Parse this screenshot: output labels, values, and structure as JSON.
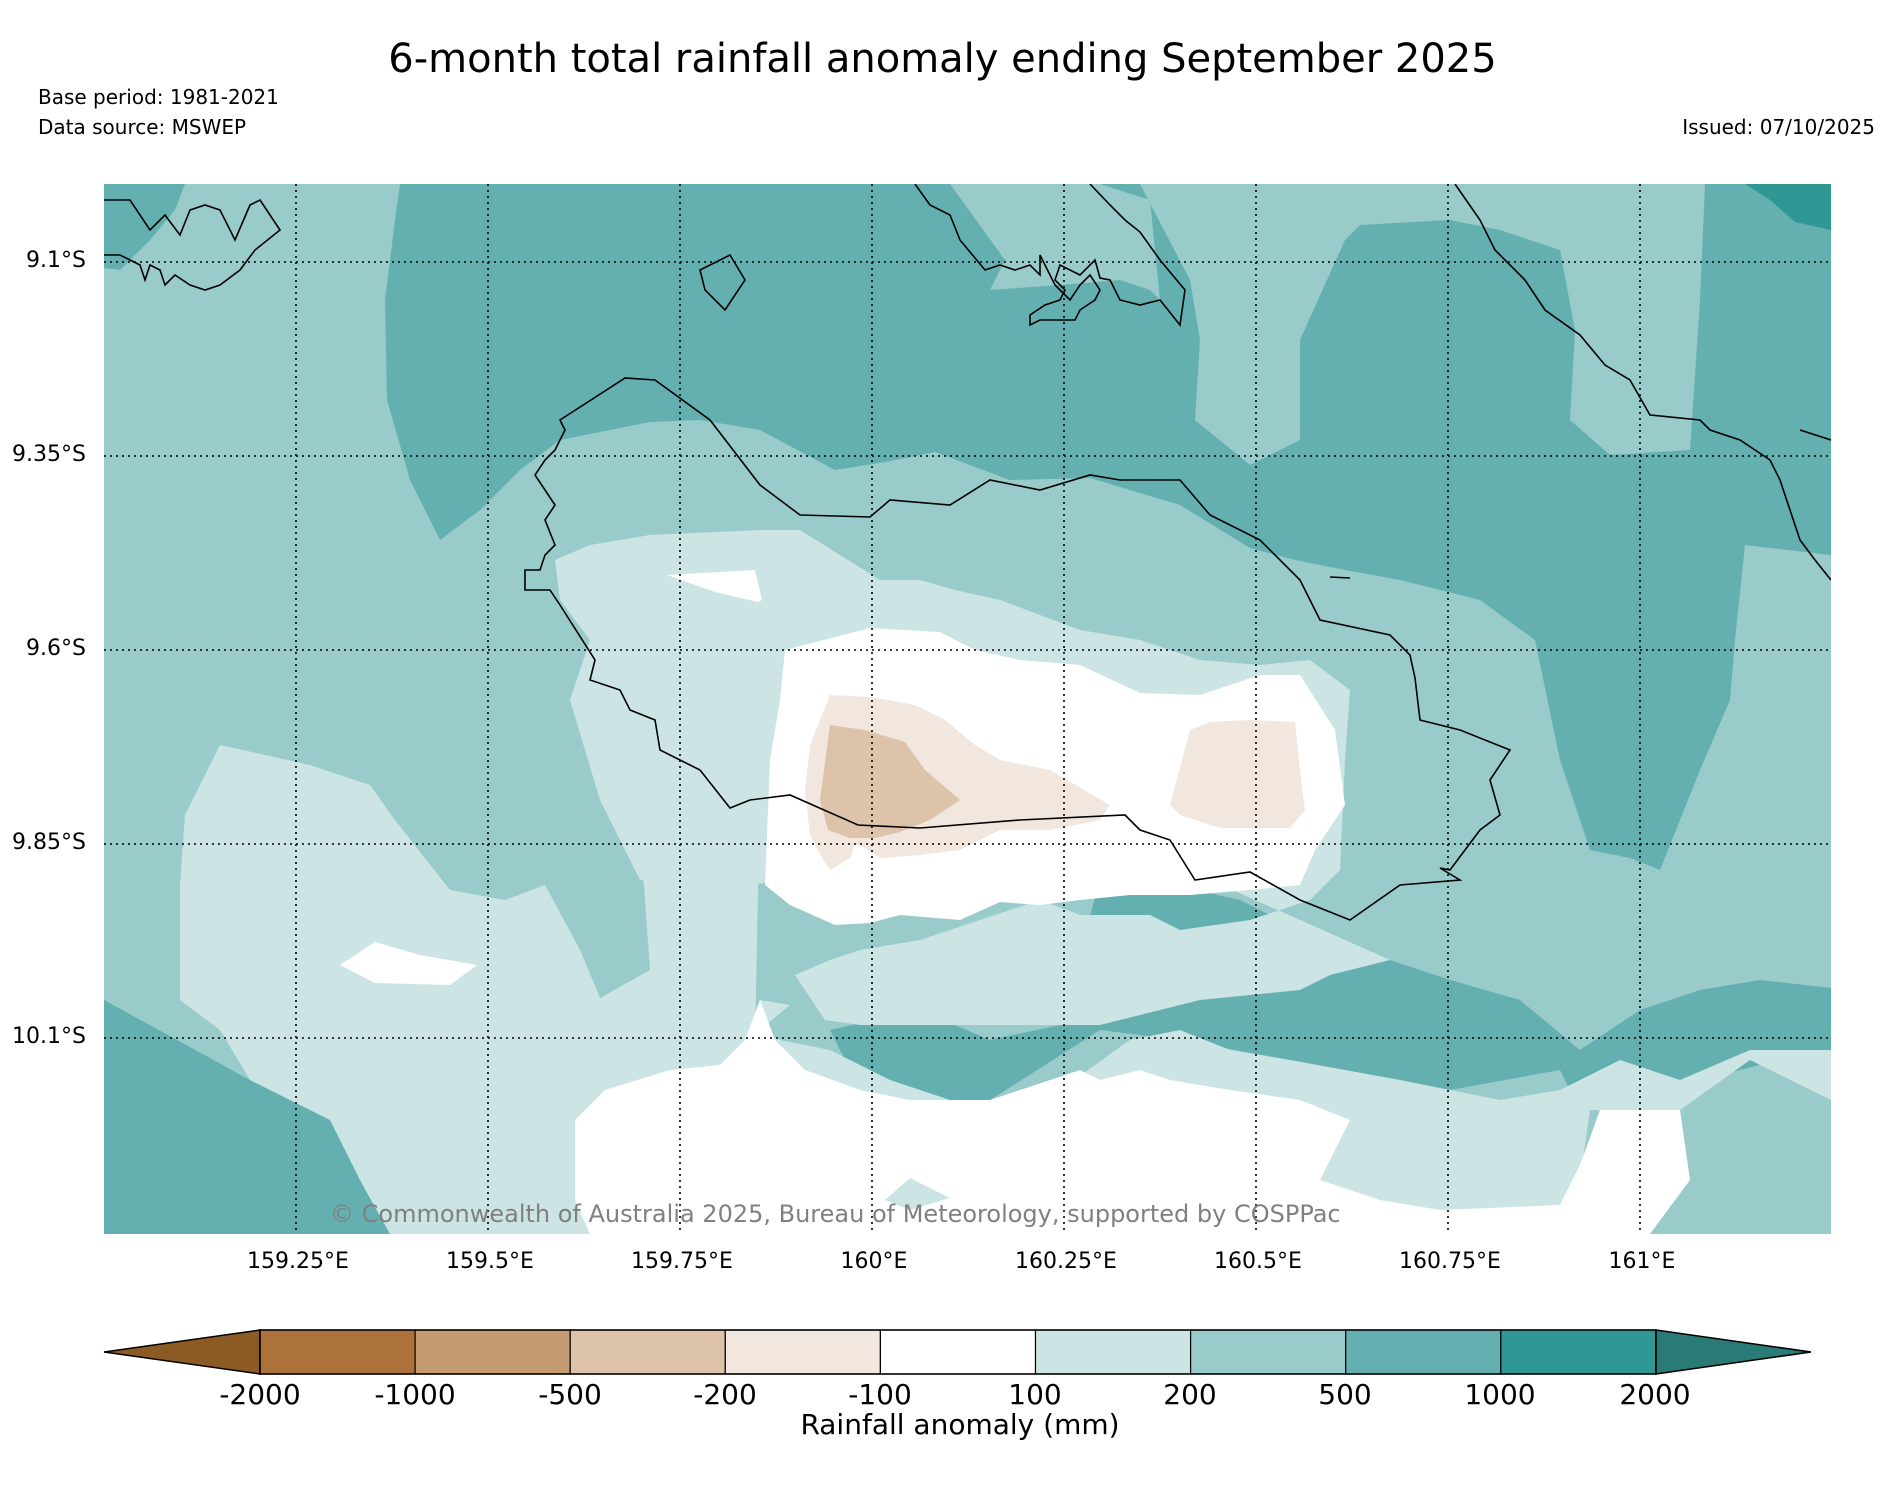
{
  "header": {
    "title": "6-month total rainfall anomaly ending September 2025",
    "base_period": "Base period: 1981-2021",
    "data_source": "Data source: MSWEP",
    "issued": "Issued: 07/10/2025"
  },
  "map": {
    "lat_labels": [
      "9.1°S",
      "9.35°S",
      "9.6°S",
      "9.85°S",
      "10.1°S"
    ],
    "lon_labels": [
      "159.25°E",
      "159.5°E",
      "159.75°E",
      "160°E",
      "160.25°E",
      "160.5°E",
      "160.75°E",
      "161°E"
    ],
    "copyright": "© Commonwealth of Australia 2025, Bureau of Meteorology, supported by COSPPac"
  },
  "colorbar": {
    "title": "Rainfall anomaly (mm)",
    "tick_labels": [
      "-2000",
      "-1000",
      "-500",
      "-200",
      "-100",
      "100",
      "200",
      "500",
      "1000",
      "2000"
    ],
    "colors": [
      "#8c5a24",
      "#ad723a",
      "#c49a70",
      "#dcc3aa",
      "#f1e7de",
      "#ffffff",
      "#cce5e4",
      "#99cbcb",
      "#64b0b0",
      "#2f9894",
      "#2a7a75"
    ]
  }
}
